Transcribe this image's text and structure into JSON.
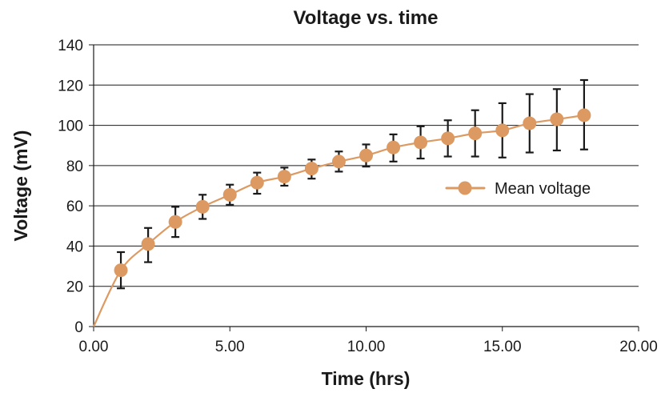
{
  "chart_data": {
    "type": "line",
    "title": "Voltage vs. time",
    "xlabel": "Time (hrs)",
    "ylabel": "Voltage (mV)",
    "xlim": [
      0,
      20
    ],
    "ylim": [
      0,
      140
    ],
    "x_ticks": [
      "0.00",
      "5.00",
      "10.00",
      "15.00",
      "20.00"
    ],
    "y_ticks": [
      "0",
      "20",
      "40",
      "60",
      "80",
      "100",
      "120",
      "140"
    ],
    "grid": "horizontal",
    "legend_position": "center-right",
    "series": [
      {
        "name": "Mean voltage",
        "color": "#dc9a62",
        "x": [
          0,
          1,
          2,
          3,
          4,
          5,
          6,
          7,
          8,
          9,
          10,
          11,
          12,
          13,
          14,
          15,
          16,
          17,
          18
        ],
        "values": [
          0,
          28,
          41,
          52,
          59.5,
          65.5,
          71.5,
          74.5,
          78.5,
          82,
          85,
          89,
          91.5,
          93.5,
          96,
          97.5,
          101,
          103,
          105
        ],
        "error_low": [
          null,
          19,
          32,
          44.5,
          53.5,
          60.5,
          66,
          70,
          73.5,
          77,
          79.5,
          82,
          83.5,
          84.5,
          84.5,
          84,
          86.5,
          87.5,
          88
        ],
        "error_high": [
          null,
          37,
          49,
          59.5,
          65.5,
          70.5,
          76.5,
          79,
          83,
          87,
          90.5,
          95.5,
          99.5,
          102.5,
          107.5,
          111,
          115.5,
          118,
          122.5
        ]
      }
    ]
  }
}
